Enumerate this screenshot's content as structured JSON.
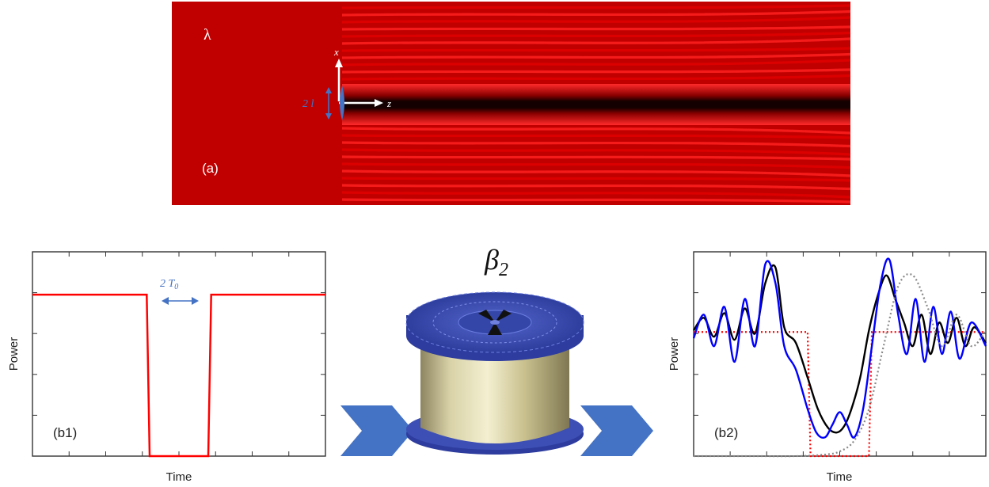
{
  "panel_a": {
    "wavelength_symbol": "λ",
    "label": "(a)",
    "x_axis": "x",
    "z_axis": "z",
    "width_label": "2 l",
    "colors": {
      "background": "#c00000",
      "fringe_bright": "#ff1a1a",
      "dark_channel": "#120000",
      "annotation": "#4472c4",
      "axes": "#ffffff"
    }
  },
  "panel_b1": {
    "label": "(b1)",
    "ylabel": "Power",
    "xlabel": "Time",
    "width_label_main": "2 T",
    "width_label_sub": "0"
  },
  "panel_b2": {
    "label": "(b2)",
    "ylabel": "Power",
    "xlabel": "Time"
  },
  "middle": {
    "dispersion_symbol": "β",
    "dispersion_sub": "2",
    "spool_icon": "fiber-spool-icon",
    "arrow_icon": "chevron-right-icon",
    "colors": {
      "spool": "#3d4fb5",
      "fiber": "#c8c08c",
      "chevron": "#4472c4"
    }
  },
  "chart_data": [
    {
      "type": "line",
      "panel": "b1",
      "xlabel": "Time",
      "ylabel": "Power",
      "grid": false,
      "series": [
        {
          "color": "#ff0000",
          "style": "solid",
          "x": [
            -1.0,
            -0.22,
            -0.2,
            -0.06,
            0.06,
            0.2,
            0.22,
            1.0
          ],
          "y": [
            0.79,
            0.79,
            0.0,
            0.0,
            0.0,
            0.0,
            0.79,
            0.79
          ]
        }
      ]
    },
    {
      "type": "line",
      "panel": "b2",
      "xlabel": "Time",
      "ylabel": "Power",
      "grid": false,
      "series": [
        {
          "color": "#ff0000",
          "style": "dotted",
          "x": [
            -1.0,
            -0.22,
            -0.2,
            -0.06,
            0.06,
            0.2,
            0.22,
            1.0
          ],
          "y": [
            0.79,
            0.79,
            0.0,
            0.0,
            0.0,
            0.0,
            0.79,
            0.79
          ]
        },
        {
          "color": "#000000",
          "style": "solid",
          "x": [
            -1.0,
            -0.93,
            -0.86,
            -0.79,
            -0.72,
            -0.65,
            -0.58,
            -0.51,
            -0.44,
            -0.38,
            -0.3,
            -0.22,
            -0.15,
            -0.08,
            -0.02,
            0.03,
            0.08,
            0.14,
            0.2,
            0.26,
            0.32,
            0.38,
            0.44,
            0.5,
            0.56,
            0.62,
            0.68,
            0.74,
            0.8,
            0.86,
            0.92,
            1.0
          ],
          "y": [
            0.8,
            0.88,
            0.76,
            0.91,
            0.74,
            0.94,
            0.78,
            1.1,
            1.2,
            0.82,
            0.72,
            0.5,
            0.3,
            0.18,
            0.15,
            0.19,
            0.3,
            0.5,
            0.8,
            1.02,
            1.15,
            1.0,
            0.85,
            0.7,
            0.9,
            0.65,
            0.85,
            0.72,
            0.88,
            0.7,
            0.82,
            0.72
          ]
        },
        {
          "color": "#0000ff",
          "style": "solid",
          "x": [
            -1.0,
            -0.93,
            -0.86,
            -0.79,
            -0.72,
            -0.65,
            -0.58,
            -0.51,
            -0.44,
            -0.38,
            -0.3,
            -0.22,
            -0.16,
            -0.1,
            -0.05,
            0.0,
            0.05,
            0.1,
            0.16,
            0.22,
            0.28,
            0.34,
            0.4,
            0.46,
            0.52,
            0.58,
            0.64,
            0.7,
            0.76,
            0.82,
            0.9,
            1.0
          ],
          "y": [
            0.75,
            0.9,
            0.7,
            0.95,
            0.6,
            1.0,
            0.7,
            1.22,
            1.1,
            0.7,
            0.55,
            0.3,
            0.15,
            0.12,
            0.2,
            0.28,
            0.2,
            0.12,
            0.3,
            0.7,
            1.1,
            1.25,
            0.9,
            0.65,
            1.0,
            0.6,
            0.95,
            0.65,
            0.92,
            0.62,
            0.85,
            0.7
          ]
        },
        {
          "color": "#888888",
          "style": "dotted",
          "x": [
            -1.0,
            -0.6,
            -0.3,
            -0.1,
            0.0,
            0.1,
            0.2,
            0.3,
            0.4,
            0.5,
            0.6,
            0.7,
            0.8,
            0.9,
            1.0
          ],
          "y": [
            0.0,
            0.0,
            0.0,
            0.01,
            0.03,
            0.1,
            0.3,
            0.7,
            1.08,
            1.15,
            0.95,
            0.7,
            0.9,
            0.7,
            0.8
          ]
        }
      ]
    }
  ]
}
